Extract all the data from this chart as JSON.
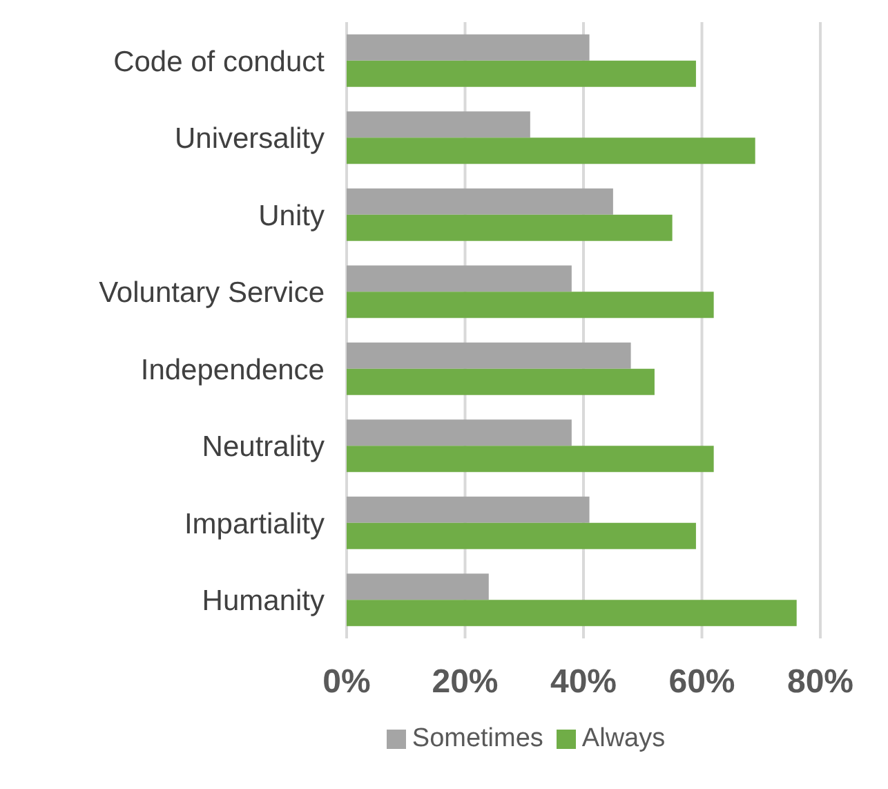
{
  "chart_data": {
    "type": "bar",
    "orientation": "horizontal",
    "categories": [
      "Code of conduct",
      "Universality",
      "Unity",
      "Voluntary Service",
      "Independence",
      "Neutrality",
      "Impartiality",
      "Humanity"
    ],
    "series": [
      {
        "name": "Sometimes",
        "color": "#a5a5a5",
        "values": [
          41,
          31,
          45,
          38,
          48,
          38,
          41,
          24
        ]
      },
      {
        "name": "Always",
        "color": "#70ad47",
        "values": [
          59,
          69,
          55,
          62,
          52,
          62,
          59,
          76
        ]
      }
    ],
    "xlim": [
      0,
      80
    ],
    "xticks": [
      {
        "value": 0,
        "label": "0%"
      },
      {
        "value": 20,
        "label": "20%"
      },
      {
        "value": 40,
        "label": "40%"
      },
      {
        "value": 60,
        "label": "60%"
      },
      {
        "value": 80,
        "label": "80%"
      }
    ],
    "grid": "x",
    "legend": "bottom"
  }
}
